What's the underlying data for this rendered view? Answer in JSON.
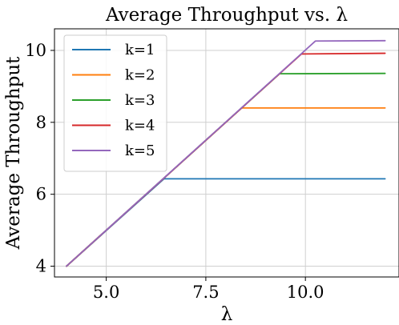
{
  "chart_data": {
    "type": "line",
    "title": "Average Throughput vs. λ",
    "xlabel": "λ",
    "ylabel": "Average Throughput",
    "xlim": [
      3.7,
      12.35
    ],
    "ylim": [
      3.7,
      10.6
    ],
    "xticks": [
      5.0,
      7.5,
      10.0
    ],
    "xtick_labels": [
      "5.0",
      "7.5",
      "10.0"
    ],
    "yticks": [
      4,
      6,
      8,
      10
    ],
    "ytick_labels": [
      "4",
      "6",
      "8",
      "10"
    ],
    "grid": true,
    "legend_placement": "upper-left",
    "series": [
      {
        "name": "k=1",
        "color": "#1f77b4",
        "x": [
          4.0,
          6.45,
          12.0
        ],
        "y": [
          4.0,
          6.43,
          6.43
        ]
      },
      {
        "name": "k=2",
        "color": "#ff7f0e",
        "x": [
          4.0,
          8.4,
          12.0
        ],
        "y": [
          4.0,
          8.4,
          8.4
        ]
      },
      {
        "name": "k=3",
        "color": "#2ca02c",
        "x": [
          4.0,
          9.35,
          12.0
        ],
        "y": [
          4.0,
          9.35,
          9.36
        ]
      },
      {
        "name": "k=4",
        "color": "#d62728",
        "x": [
          4.0,
          9.9,
          12.0
        ],
        "y": [
          4.0,
          9.9,
          9.92
        ]
      },
      {
        "name": "k=5",
        "color": "#9467bd",
        "x": [
          4.0,
          10.25,
          12.0
        ],
        "y": [
          4.0,
          10.26,
          10.27
        ]
      }
    ]
  }
}
